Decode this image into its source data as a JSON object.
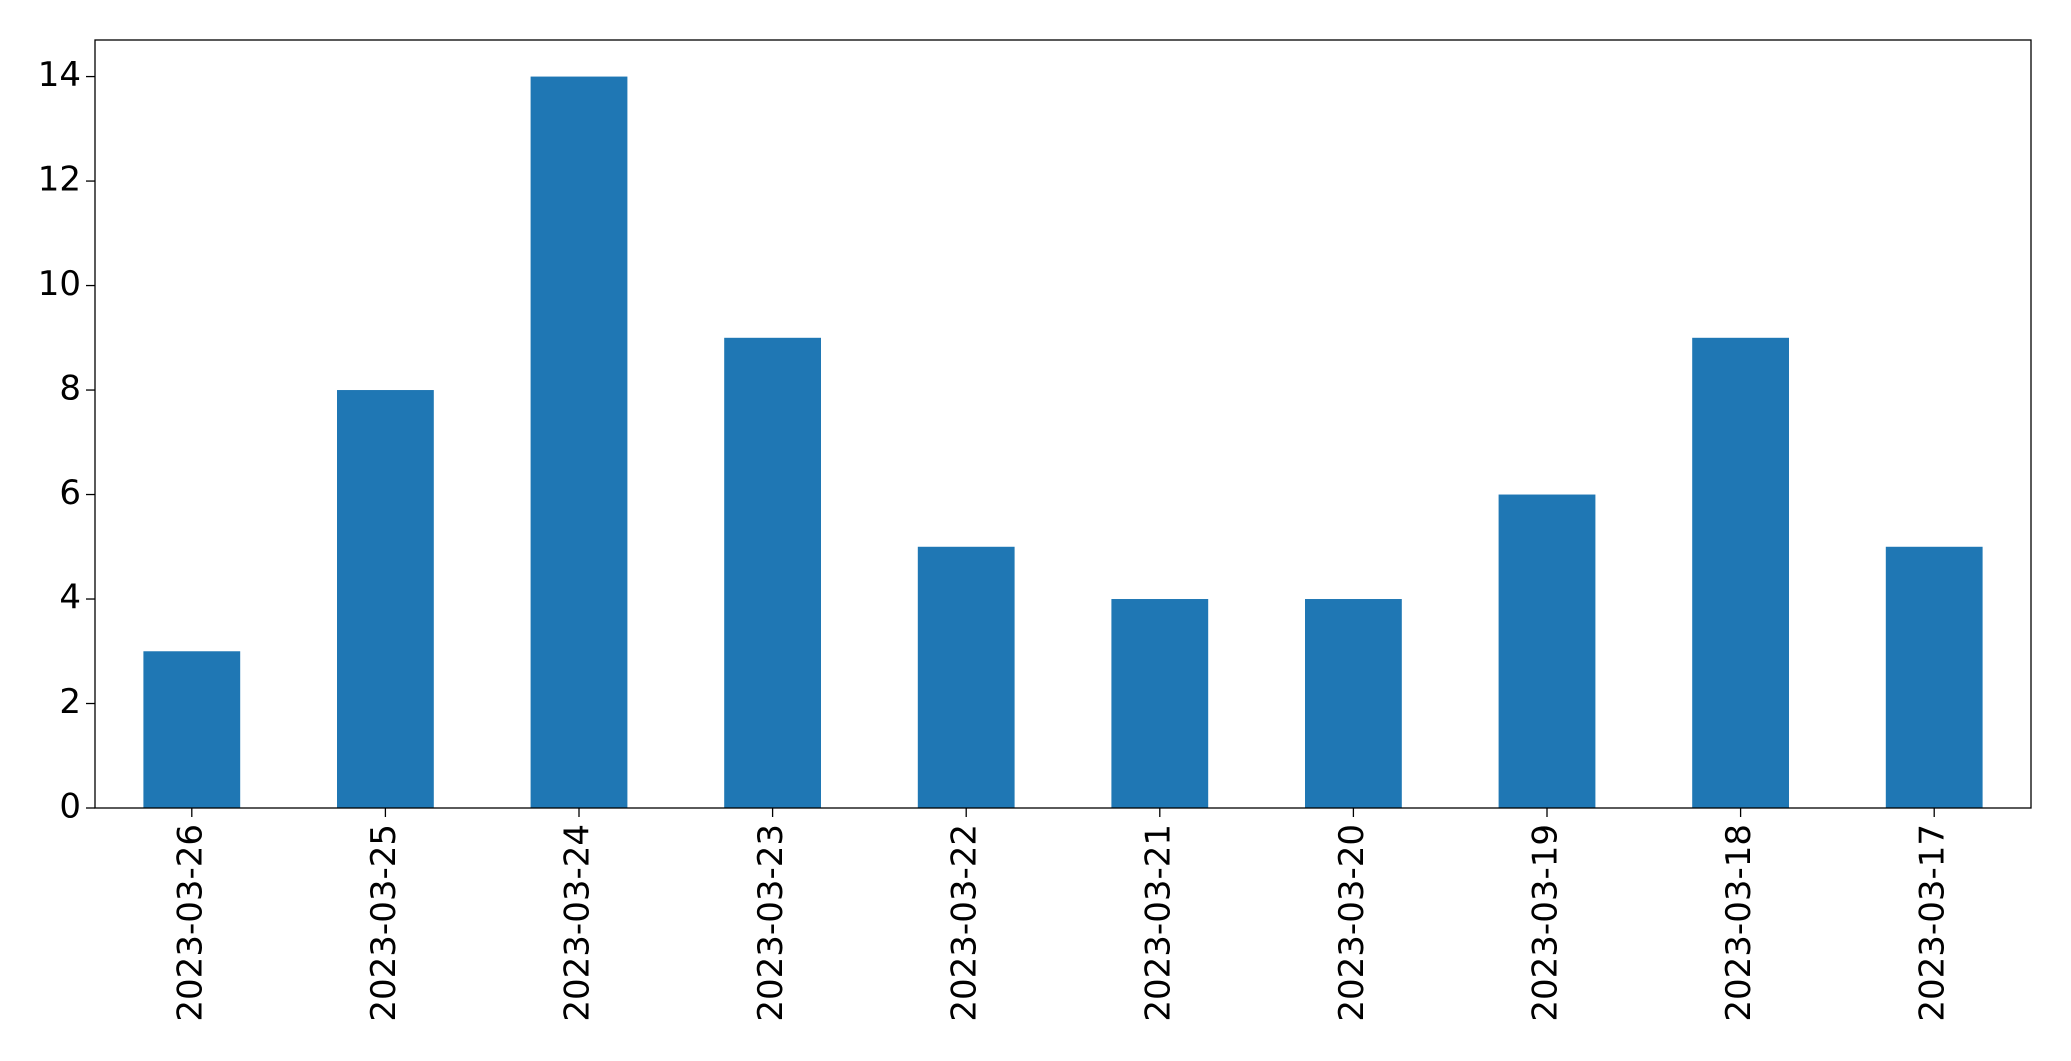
{
  "chart_data": {
    "type": "bar",
    "categories": [
      "2023-03-26",
      "2023-03-25",
      "2023-03-24",
      "2023-03-23",
      "2023-03-22",
      "2023-03-21",
      "2023-03-20",
      "2023-03-19",
      "2023-03-18",
      "2023-03-17"
    ],
    "values": [
      3,
      8,
      14,
      9,
      5,
      4,
      4,
      6,
      9,
      5
    ],
    "color": "#1f77b4",
    "ylim": [
      0,
      14.7
    ],
    "yticks": [
      0,
      2,
      4,
      6,
      8,
      10,
      12,
      14
    ],
    "grid": false
  }
}
